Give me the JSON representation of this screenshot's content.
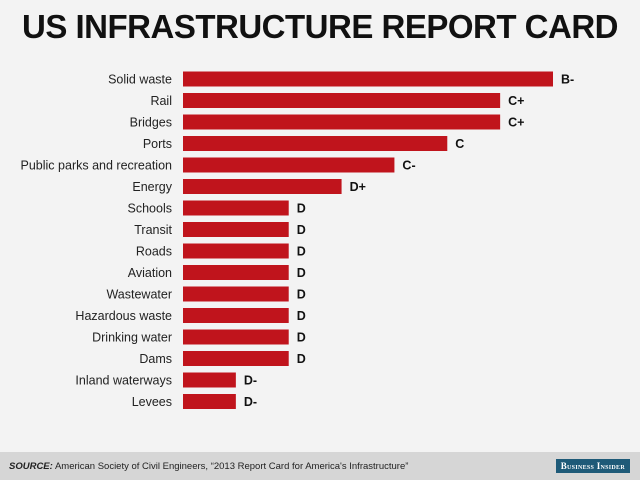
{
  "chart_data": {
    "type": "bar",
    "orientation": "horizontal",
    "title": "US INFRASTRUCTURE REPORT CARD",
    "categories": [
      "Solid waste",
      "Rail",
      "Bridges",
      "Ports",
      "Public parks and recreation",
      "Energy",
      "Schools",
      "Transit",
      "Roads",
      "Aviation",
      "Wastewater",
      "Hazardous waste",
      "Drinking water",
      "Dams",
      "Inland waterways",
      "Levees"
    ],
    "grades": [
      "B-",
      "C+",
      "C+",
      "C",
      "C-",
      "D+",
      "D",
      "D",
      "D",
      "D",
      "D",
      "D",
      "D",
      "D",
      "D-",
      "D-"
    ],
    "grade_scale": [
      "D-",
      "D",
      "D+",
      "C-",
      "C",
      "C+",
      "B-"
    ],
    "values": [
      7,
      6,
      6,
      5,
      4,
      3,
      2,
      2,
      2,
      2,
      2,
      2,
      2,
      2,
      1,
      1
    ],
    "xlim": [
      0,
      7
    ],
    "grid": false,
    "bar_color": "#c0141c"
  },
  "footer": {
    "source_label": "SOURCE:",
    "source_text": "American Society of Civil Engineers, “2013 Report Card for America's Infrastructure”",
    "logo": "Business Insider"
  }
}
